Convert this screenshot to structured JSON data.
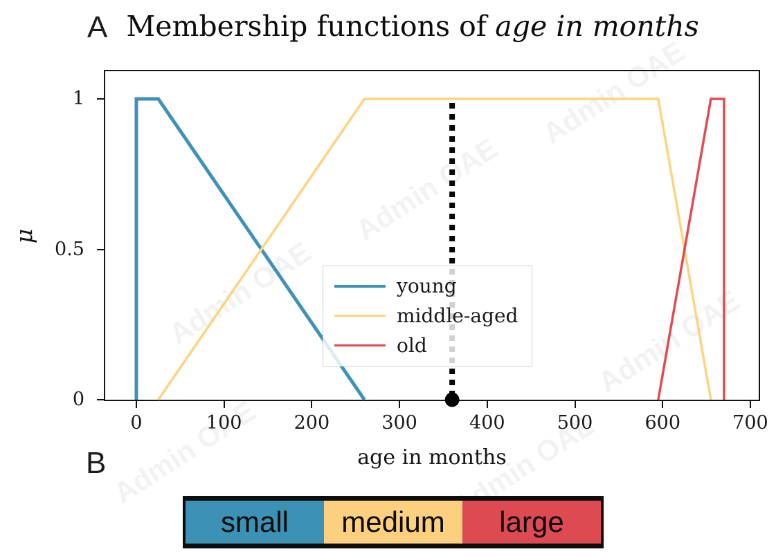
{
  "panel_a": {
    "label": "A"
  },
  "panel_b": {
    "label": "B"
  },
  "title": {
    "main": "Membership functions of",
    "emph": "age in months"
  },
  "watermark": {
    "text": "Admin OAE"
  },
  "chart_data": {
    "type": "line",
    "title": "Membership functions of age in months",
    "xlabel": "age in months",
    "ylabel": "μ",
    "xlim": [
      -35,
      710
    ],
    "ylim": [
      0,
      1.09
    ],
    "grid": false,
    "legend_position": "center",
    "x_ticks": [
      0,
      100,
      200,
      300,
      400,
      500,
      600,
      700
    ],
    "y_ticks": [
      {
        "value": 0,
        "label": "0"
      },
      {
        "value": 0.5,
        "label": "0.5"
      },
      {
        "value": 1,
        "label": "1"
      }
    ],
    "series": [
      {
        "name": "young",
        "color": "#3e92ba",
        "lw": 5,
        "points": [
          [
            0,
            0
          ],
          [
            0,
            1
          ],
          [
            25,
            1
          ],
          [
            260,
            0
          ]
        ]
      },
      {
        "name": "middle-aged",
        "color": "#fdd37e",
        "lw": 3.5,
        "points": [
          [
            25,
            0
          ],
          [
            260,
            1
          ],
          [
            595,
            1
          ],
          [
            655,
            0
          ]
        ]
      },
      {
        "name": "old",
        "color": "#e24b51",
        "lw": 3.5,
        "points": [
          [
            595,
            0
          ],
          [
            655,
            1
          ],
          [
            670,
            1
          ],
          [
            670,
            0
          ]
        ]
      }
    ],
    "input_marker": {
      "x": 360,
      "color": "#050505",
      "style": "dotted vertical line with dot on axis"
    }
  },
  "category_bar": {
    "border_color": "#0d0d0d",
    "segments": [
      {
        "label": "small",
        "color": "#3b92b4"
      },
      {
        "label": "medium",
        "color": "#fcd07e"
      },
      {
        "label": "large",
        "color": "#dd4a52"
      }
    ]
  }
}
